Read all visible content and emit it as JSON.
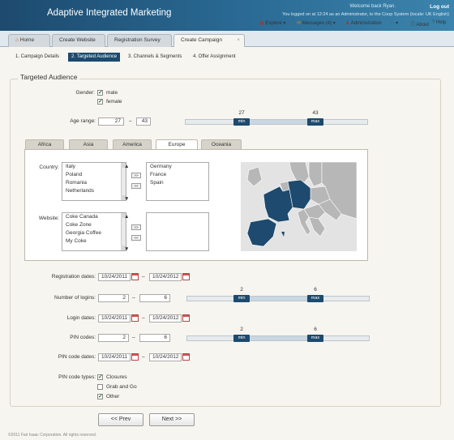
{
  "header": {
    "app_title": "Adaptive Integrated Marketing",
    "welcome": "Welcome back Ryan.",
    "logout": "Log out",
    "logged_in": "You  logged on at 12:24 as an Administrator, to the Coop System (locale: UK English)"
  },
  "tabs": [
    {
      "label": "Home"
    },
    {
      "label": "Create Website"
    },
    {
      "label": "Registration Survey"
    },
    {
      "label": "Create Campaign",
      "close": "×"
    }
  ],
  "toplinks": {
    "explore": "Explore ▾",
    "messages": "Messages (4) ▾",
    "administration": "Administration",
    "gear": "▾",
    "about": "About",
    "help": "Help"
  },
  "steps": [
    "1. Campaign Details",
    "2. Targeted Audience",
    "3. Channels & Segments",
    "4. Offer Assignment"
  ],
  "section_title": "Targeted Audience",
  "gender": {
    "label": "Gender:",
    "male": "male",
    "female": "female"
  },
  "age": {
    "label": "Age range:",
    "min": "27",
    "max": "43",
    "min_label": "min",
    "max_label": "max",
    "dash": "–"
  },
  "regions": [
    "Africa",
    "Asia",
    "America",
    "Europe",
    "Oceania"
  ],
  "country": {
    "label": "Country:",
    "available": [
      "Italy",
      "Poland",
      "Romania",
      "Netherlands"
    ],
    "selected": [
      "Germany",
      "France",
      "Spain"
    ],
    "add": ">>",
    "remove": "<<"
  },
  "website": {
    "label": "Website:",
    "available": [
      "Coke Canada",
      "Coke Zone",
      "Georgia Coffee",
      "My Coke"
    ],
    "selected": [],
    "add": ">>",
    "remove": "<<"
  },
  "registration_dates": {
    "label": "Registration dates:",
    "from": "10/24/2011",
    "to": "10/24/2012"
  },
  "logins": {
    "label": "Number of logins:",
    "min": "2",
    "max": "6",
    "min_label": "min",
    "max_label": "max"
  },
  "login_dates": {
    "label": "Login dates:",
    "from": "10/24/2011",
    "to": "10/24/2012"
  },
  "pin_codes": {
    "label": "PIN codes:",
    "min": "2",
    "max": "6",
    "min_label": "min",
    "max_label": "max"
  },
  "pin_code_dates": {
    "label": "PIN code dates:",
    "from": "10/24/2011",
    "to": "10/24/2012"
  },
  "pin_code_types": {
    "label": "PIN code types:",
    "closures": "Closures",
    "grab_and_go": "Grab and Go",
    "other": "Other"
  },
  "nav": {
    "prev": "<<  Prev",
    "next": "Next  >>"
  },
  "copyright": "©2011 Fair Isaac Corporation.  All rights reserved.",
  "colors": {
    "header": "#1d4a6e",
    "accent": "#1d4a6e",
    "selected_country": "#1d4a6e"
  },
  "checkbox_state": {
    "male": true,
    "female": true,
    "closures": true,
    "grab_and_go": false,
    "other": true
  },
  "slider_levels": {
    "age": {
      "min_fraction": 0.44,
      "max_fraction": 0.7
    },
    "logins": {
      "min_fraction": 0.31,
      "max_fraction": 0.71
    },
    "pin_codes": {
      "min_fraction": 0.31,
      "max_fraction": 0.71
    }
  }
}
